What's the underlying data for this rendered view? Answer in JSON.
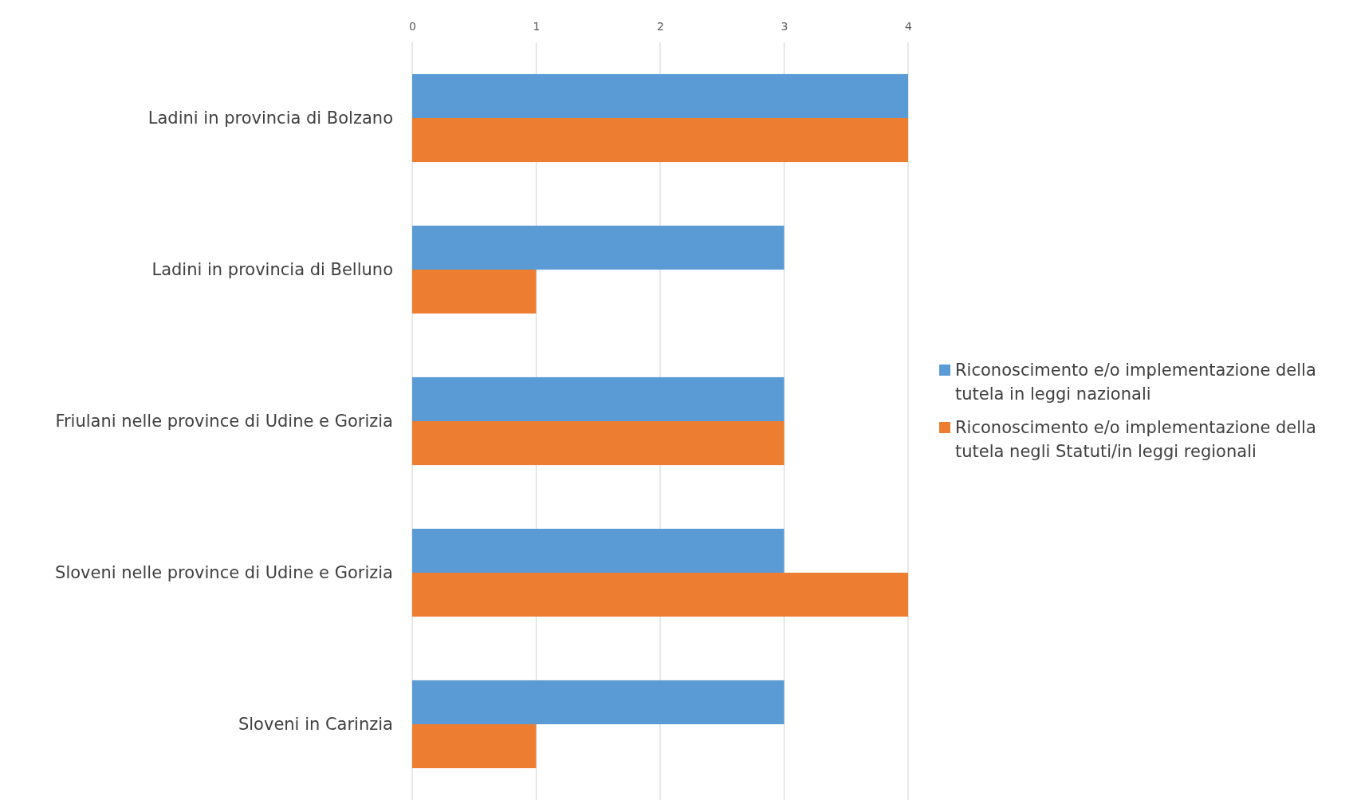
{
  "chart_data": {
    "type": "bar",
    "orientation": "horizontal",
    "categories": [
      "Ladini in provincia di Bolzano",
      "Ladini in provincia di Belluno",
      "Friulani nelle province di Udine e Gorizia",
      "Sloveni nelle province di Udine e Gorizia",
      "Sloveni in Carinzia"
    ],
    "series": [
      {
        "name": "Riconoscimento e/o implementazione della tutela in leggi nazionali",
        "color": "#5b9bd5",
        "values": [
          4,
          3,
          3,
          3,
          3
        ]
      },
      {
        "name": "Riconoscimento e/o implementazione della tutela negli Statuti/in leggi regionali",
        "color": "#ed7d31",
        "values": [
          4,
          1,
          3,
          4,
          1
        ]
      }
    ],
    "xlim": [
      0,
      4
    ],
    "xticks": [
      0,
      1,
      2,
      3,
      4
    ],
    "grid": "x",
    "legend": "right"
  }
}
